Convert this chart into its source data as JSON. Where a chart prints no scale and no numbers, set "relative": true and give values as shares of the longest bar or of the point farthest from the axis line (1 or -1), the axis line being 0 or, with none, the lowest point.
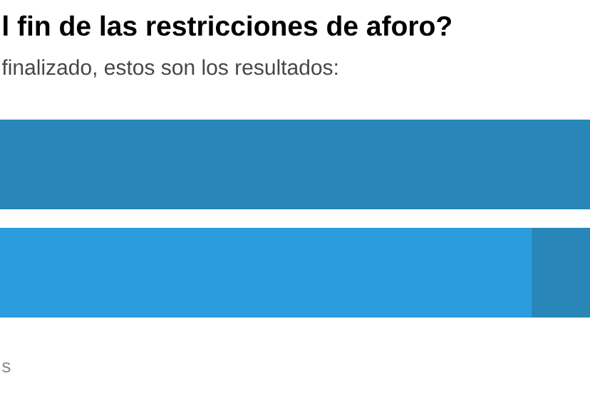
{
  "chart_data": {
    "type": "bar",
    "orientation": "horizontal",
    "stacked": true,
    "relative": true,
    "title": "l fin de las restricciones de aforo?",
    "subtitle": "finalizado, estos son los resultados:",
    "annotations": [
      "s"
    ],
    "categories": [
      null,
      null
    ],
    "series": [
      {
        "color": "#2b9cdd",
        "values": [
          null,
          0.9
        ]
      },
      {
        "color": "#2886b8",
        "values": [
          1,
          0.1
        ]
      }
    ]
  }
}
